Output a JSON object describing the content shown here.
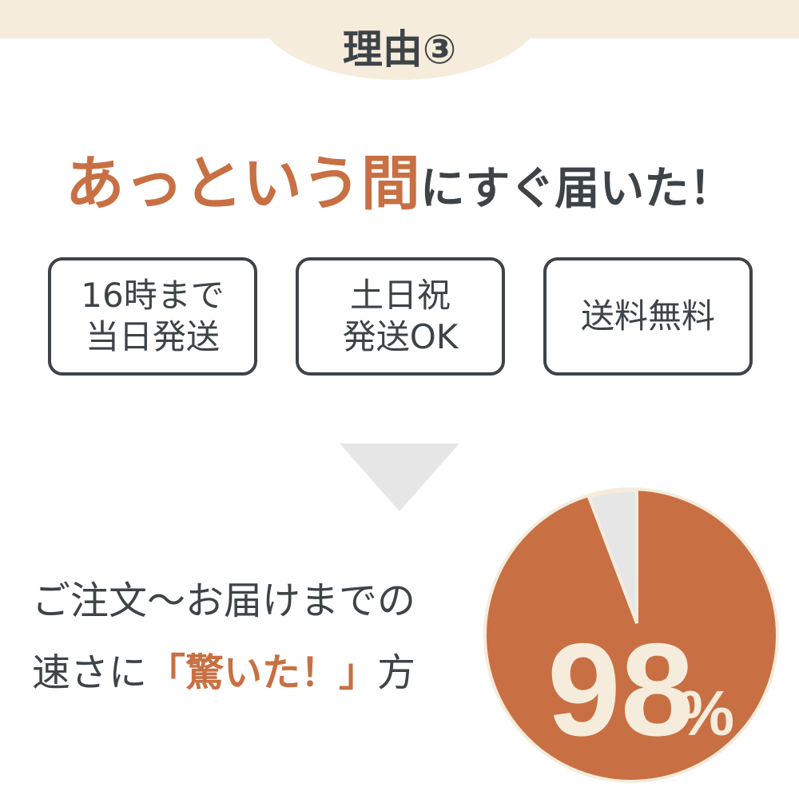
{
  "header": {
    "label": "理由③"
  },
  "headline": {
    "accent": "あっという間",
    "rest": "にすぐ届いた！"
  },
  "features": [
    {
      "label": "16時まで\n当日発送"
    },
    {
      "label": "土日祝\n発送OK"
    },
    {
      "label": "送料無料"
    }
  ],
  "summary": {
    "line1": "ご注文～お届けまでの",
    "line2_pre": "速さに",
    "line2_accent": "「驚いた！」",
    "line2_post": "方"
  },
  "chart_data": {
    "type": "pie",
    "values": [
      98,
      2
    ],
    "label_value": "98",
    "label_unit": "%"
  },
  "colors": {
    "accent": "#c87043",
    "cream": "#f5ecdc",
    "text": "#3d4347",
    "gray": "#e6e6e6"
  }
}
